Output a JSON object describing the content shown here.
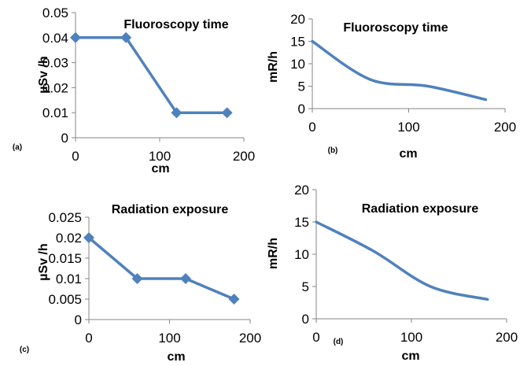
{
  "chart_data": [
    {
      "panel_label": "(a)",
      "type": "line",
      "title": "Fluoroscopy time",
      "xlabel": "cm",
      "ylabel": "µSv /h",
      "xlim": [
        0,
        200
      ],
      "ylim": [
        0,
        0.05
      ],
      "xticks": [
        "0",
        "100",
        "200"
      ],
      "yticks": [
        "0",
        "0.01",
        "0.02",
        "0.03",
        "0.04",
        "0.05"
      ],
      "markers": "diamond",
      "smooth": false,
      "color": "#4F81BD",
      "series": [
        {
          "x": [
            0,
            60,
            120,
            180
          ],
          "y": [
            0.04,
            0.04,
            0.01,
            0.01
          ]
        }
      ]
    },
    {
      "panel_label": "(b)",
      "type": "line",
      "title": "Fluoroscopy time",
      "xlabel": "cm",
      "ylabel": "mR/h",
      "xlim": [
        0,
        200
      ],
      "ylim": [
        0,
        20
      ],
      "xticks": [
        "0",
        "100",
        "200"
      ],
      "yticks": [
        "0",
        "5",
        "10",
        "15",
        "20"
      ],
      "markers": "none",
      "smooth": true,
      "color": "#4F81BD",
      "series": [
        {
          "x": [
            0,
            60,
            120,
            180
          ],
          "y": [
            15,
            6.5,
            5,
            2
          ]
        }
      ]
    },
    {
      "panel_label": "(c)",
      "type": "line",
      "title": "Radiation exposure",
      "xlabel": "cm",
      "ylabel": "µSv /h",
      "xlim": [
        0,
        200
      ],
      "ylim": [
        0,
        0.025
      ],
      "xticks": [
        "0",
        "100",
        "200"
      ],
      "yticks": [
        "0",
        "0.005",
        "0.01",
        "0.015",
        "0.02",
        "0.025"
      ],
      "markers": "diamond",
      "smooth": false,
      "color": "#4F81BD",
      "series": [
        {
          "x": [
            0,
            60,
            120,
            180
          ],
          "y": [
            0.02,
            0.01,
            0.01,
            0.005
          ]
        }
      ]
    },
    {
      "panel_label": "(d)",
      "type": "line",
      "title": "Radiation exposure",
      "xlabel": "cm",
      "ylabel": "mR/h",
      "xlim": [
        0,
        200
      ],
      "ylim": [
        0,
        20
      ],
      "xticks": [
        "0",
        "100",
        "200"
      ],
      "yticks": [
        "0",
        "5",
        "10",
        "15",
        "20"
      ],
      "markers": "none",
      "smooth": true,
      "color": "#4F81BD",
      "series": [
        {
          "x": [
            0,
            60,
            120,
            180
          ],
          "y": [
            15,
            10.5,
            5,
            3
          ]
        }
      ]
    }
  ]
}
